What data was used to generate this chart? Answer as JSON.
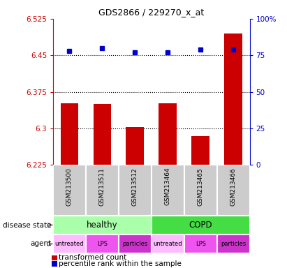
{
  "title": "GDS2866 / 229270_x_at",
  "samples": [
    "GSM213500",
    "GSM213511",
    "GSM213512",
    "GSM213464",
    "GSM213465",
    "GSM213466"
  ],
  "bar_values": [
    6.352,
    6.35,
    6.302,
    6.352,
    6.284,
    6.495
  ],
  "percentile_values": [
    78,
    80,
    77,
    77,
    79,
    79
  ],
  "bar_color": "#cc0000",
  "percentile_color": "#0000cc",
  "ylim_left": [
    6.225,
    6.525
  ],
  "yticks_left": [
    6.225,
    6.3,
    6.375,
    6.45,
    6.525
  ],
  "yticks_right": [
    0,
    25,
    50,
    75,
    100
  ],
  "ylim_right": [
    0,
    100
  ],
  "grid_values": [
    6.3,
    6.375,
    6.45
  ],
  "disease_groups": [
    [
      "healthy",
      0,
      2
    ],
    [
      "COPD",
      3,
      5
    ]
  ],
  "disease_colors": {
    "healthy": "#aaffaa",
    "COPD": "#44dd44"
  },
  "agent_labels": [
    "untreated",
    "LPS",
    "particles",
    "untreated",
    "LPS",
    "particles"
  ],
  "agent_colors": [
    "#ffbbff",
    "#ee55ee",
    "#cc33cc",
    "#ffbbff",
    "#ee55ee",
    "#cc33cc"
  ],
  "sample_bg_color": "#cccccc",
  "left_axis_color": "#cc0000",
  "right_axis_color": "#0000cc",
  "plot_bg_color": "#ffffff",
  "spine_color": "#aaaaaa"
}
